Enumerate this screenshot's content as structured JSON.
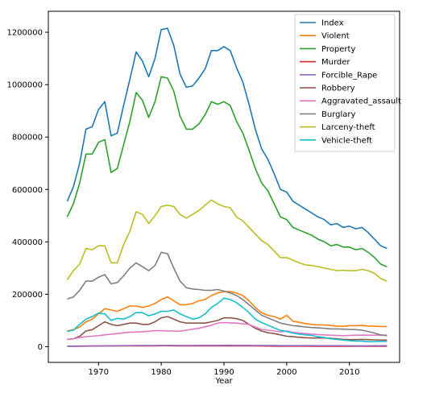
{
  "chart_data": {
    "type": "line",
    "title": "",
    "xlabel": "Year",
    "ylabel": "",
    "xlim": [
      1962,
      2018
    ],
    "ylim": [
      -60000,
      1280000
    ],
    "x_ticks": [
      1970,
      1980,
      1990,
      2000,
      2010
    ],
    "y_ticks": [
      0,
      200000,
      400000,
      600000,
      800000,
      1000000,
      1200000
    ],
    "grid": false,
    "legend_position": "top-right",
    "x": [
      1965,
      1966,
      1967,
      1968,
      1969,
      1970,
      1971,
      1972,
      1973,
      1974,
      1975,
      1976,
      1977,
      1978,
      1979,
      1980,
      1981,
      1982,
      1983,
      1984,
      1985,
      1986,
      1987,
      1988,
      1989,
      1990,
      1991,
      1992,
      1993,
      1994,
      1995,
      1996,
      1997,
      1998,
      1999,
      2000,
      2001,
      2002,
      2003,
      2004,
      2005,
      2006,
      2007,
      2008,
      2009,
      2010,
      2011,
      2012,
      2013,
      2014,
      2015,
      2016
    ],
    "series": [
      {
        "name": "Index",
        "color": "#1f77b4",
        "values": [
          555000,
          610000,
          700000,
          830000,
          840000,
          905000,
          935000,
          805000,
          815000,
          920000,
          1020000,
          1125000,
          1090000,
          1030000,
          1100000,
          1210000,
          1215000,
          1150000,
          1040000,
          990000,
          995000,
          1025000,
          1060000,
          1130000,
          1130000,
          1145000,
          1130000,
          1065000,
          1010000,
          925000,
          830000,
          755000,
          715000,
          660000,
          600000,
          590000,
          555000,
          540000,
          525000,
          510000,
          495000,
          485000,
          465000,
          470000,
          455000,
          460000,
          450000,
          455000,
          435000,
          410000,
          385000,
          375000
        ]
      },
      {
        "name": "Violent",
        "color": "#ff7f0e",
        "values": [
          60000,
          65000,
          75000,
          95000,
          105000,
          125000,
          145000,
          140000,
          135000,
          145000,
          155000,
          155000,
          150000,
          155000,
          165000,
          180000,
          190000,
          175000,
          160000,
          160000,
          165000,
          175000,
          180000,
          195000,
          205000,
          210000,
          210000,
          205000,
          195000,
          175000,
          150000,
          130000,
          120000,
          115000,
          105000,
          120000,
          97000,
          93000,
          88000,
          85000,
          83000,
          83000,
          81000,
          78000,
          78000,
          80000,
          80000,
          81000,
          79000,
          78000,
          77000,
          77000
        ]
      },
      {
        "name": "Property",
        "color": "#2ca02c",
        "values": [
          495000,
          545000,
          625000,
          735000,
          735000,
          780000,
          790000,
          665000,
          680000,
          770000,
          860000,
          970000,
          940000,
          875000,
          935000,
          1030000,
          1025000,
          975000,
          880000,
          830000,
          830000,
          850000,
          885000,
          935000,
          925000,
          935000,
          920000,
          860000,
          815000,
          750000,
          680000,
          625000,
          595000,
          545000,
          495000,
          485000,
          455000,
          445000,
          435000,
          425000,
          410000,
          400000,
          385000,
          390000,
          380000,
          380000,
          370000,
          375000,
          360000,
          340000,
          315000,
          305000
        ]
      },
      {
        "name": "Murder",
        "color": "#d62728",
        "values": [
          1500,
          1700,
          1900,
          2100,
          2300,
          2500,
          2800,
          3000,
          3000,
          3100,
          3100,
          3000,
          3000,
          3100,
          3200,
          3500,
          3500,
          3300,
          3200,
          3000,
          3100,
          3200,
          3100,
          3300,
          3300,
          3400,
          3500,
          3300,
          3300,
          3100,
          2900,
          2700,
          2400,
          2200,
          2100,
          2200,
          2100,
          2100,
          2000,
          1900,
          1900,
          1900,
          1900,
          1800,
          1700,
          1700,
          1600,
          1700,
          1600,
          1600,
          1700,
          1800
        ]
      },
      {
        "name": "Forcible_Rape",
        "color": "#9467bd",
        "values": [
          2000,
          2200,
          2400,
          2600,
          2800,
          3000,
          3200,
          3400,
          3600,
          3800,
          4000,
          4100,
          4200,
          4300,
          4500,
          4800,
          4800,
          4700,
          4600,
          4500,
          4600,
          4700,
          4800,
          4900,
          5000,
          5100,
          5100,
          5000,
          4900,
          4800,
          4500,
          4300,
          4200,
          4100,
          4000,
          4000,
          3900,
          3900,
          3800,
          3800,
          3700,
          3700,
          3600,
          3500,
          3500,
          3400,
          3400,
          3400,
          3400,
          3500,
          3600,
          3700
        ]
      },
      {
        "name": "Robbery",
        "color": "#8c564b",
        "values": [
          28000,
          30000,
          40000,
          60000,
          65000,
          80000,
          95000,
          85000,
          80000,
          85000,
          90000,
          90000,
          85000,
          85000,
          95000,
          110000,
          115000,
          105000,
          95000,
          90000,
          90000,
          90000,
          90000,
          95000,
          100000,
          110000,
          110000,
          107000,
          100000,
          85000,
          70000,
          60000,
          53000,
          50000,
          45000,
          40000,
          38000,
          36000,
          34000,
          33000,
          33000,
          33000,
          32000,
          30000,
          28000,
          27000,
          27000,
          28000,
          27000,
          26000,
          25000,
          25000
        ]
      },
      {
        "name": "Aggravated_assault",
        "color": "#e377c2",
        "values": [
          27000,
          30000,
          35000,
          38000,
          40000,
          42000,
          45000,
          48000,
          50000,
          53000,
          55000,
          56000,
          57000,
          59000,
          61000,
          61000,
          60000,
          60000,
          59000,
          63000,
          67000,
          70000,
          76000,
          82000,
          90000,
          92000,
          91000,
          90000,
          87000,
          85000,
          75000,
          66000,
          63000,
          60000,
          57000,
          60000,
          55000,
          52000,
          50000,
          48000,
          46000,
          45000,
          44000,
          43000,
          42000,
          43000,
          44000,
          44000,
          44000,
          44000,
          44000,
          44000
        ]
      },
      {
        "name": "Burglary",
        "color": "#7f7f7f",
        "values": [
          182000,
          190000,
          215000,
          250000,
          250000,
          265000,
          275000,
          240000,
          245000,
          270000,
          300000,
          320000,
          305000,
          290000,
          310000,
          360000,
          355000,
          300000,
          250000,
          225000,
          220000,
          218000,
          215000,
          215000,
          218000,
          212000,
          205000,
          195000,
          180000,
          160000,
          140000,
          120000,
          110000,
          100000,
          90000,
          85000,
          80000,
          78000,
          75000,
          73000,
          72000,
          70000,
          68000,
          68000,
          67000,
          66000,
          65000,
          63000,
          58000,
          52000,
          45000,
          42000
        ]
      },
      {
        "name": "Larceny-theft",
        "color": "#bcbd22",
        "values": [
          255000,
          290000,
          315000,
          375000,
          370000,
          385000,
          385000,
          320000,
          320000,
          390000,
          440000,
          515000,
          505000,
          470000,
          500000,
          535000,
          540000,
          535000,
          505000,
          490000,
          505000,
          520000,
          540000,
          560000,
          545000,
          535000,
          530000,
          495000,
          480000,
          455000,
          430000,
          405000,
          390000,
          365000,
          340000,
          340000,
          330000,
          320000,
          312000,
          310000,
          305000,
          300000,
          295000,
          290000,
          292000,
          290000,
          290000,
          295000,
          290000,
          280000,
          260000,
          250000
        ]
      },
      {
        "name": "Vehicle-theft",
        "color": "#17becf",
        "values": [
          58000,
          63000,
          85000,
          105000,
          115000,
          128000,
          125000,
          100000,
          108000,
          105000,
          115000,
          130000,
          130000,
          118000,
          125000,
          135000,
          135000,
          140000,
          125000,
          115000,
          105000,
          110000,
          125000,
          150000,
          165000,
          185000,
          180000,
          168000,
          150000,
          130000,
          105000,
          92000,
          82000,
          72000,
          62000,
          58000,
          52000,
          48000,
          45000,
          43000,
          38000,
          35000,
          30000,
          28000,
          25000,
          23000,
          21000,
          21000,
          19000,
          19000,
          20000,
          20000
        ]
      }
    ]
  }
}
